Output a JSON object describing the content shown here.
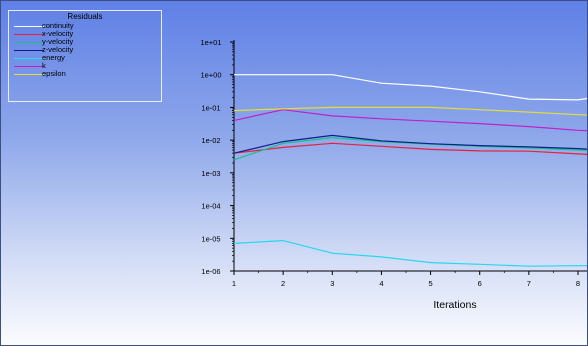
{
  "chart_data": {
    "type": "line",
    "title": "",
    "xlabel": "Iterations",
    "ylabel": "",
    "yscale": "log",
    "xlim": [
      1,
      8.3
    ],
    "ylim": [
      1e-06,
      10
    ],
    "x_ticks": [
      "1",
      "2",
      "3",
      "4",
      "5",
      "6",
      "7",
      "8"
    ],
    "y_ticks": [
      "1e+01",
      "1e+00",
      "1e-01",
      "1e-02",
      "1e-03",
      "1e-04",
      "1e-05",
      "1e-06"
    ],
    "grid": false,
    "legend": {
      "title": "Residuals",
      "placement": "top-left"
    },
    "x": [
      1,
      2,
      3,
      4,
      5,
      6,
      7,
      8,
      8.3
    ],
    "series": [
      {
        "name": "continuity",
        "color": "#ffffff",
        "values": [
          1.0,
          1.0,
          1.0,
          0.55,
          0.45,
          0.3,
          0.18,
          0.17,
          0.2
        ]
      },
      {
        "name": "x-velocity",
        "color": "#e8203a",
        "values": [
          0.004,
          0.006,
          0.008,
          0.0065,
          0.0052,
          0.0047,
          0.0046,
          0.0038,
          0.0036
        ]
      },
      {
        "name": "y-velocity",
        "color": "#18c08a",
        "values": [
          0.0025,
          0.008,
          0.012,
          0.009,
          0.0075,
          0.0065,
          0.0058,
          0.005,
          0.0048
        ]
      },
      {
        "name": "z-velocity",
        "color": "#0e1f8c",
        "values": [
          0.004,
          0.009,
          0.014,
          0.0095,
          0.0078,
          0.0068,
          0.0062,
          0.0055,
          0.0052
        ]
      },
      {
        "name": "energy",
        "color": "#25d8ee",
        "values": [
          7e-06,
          8.5e-06,
          3.5e-06,
          2.7e-06,
          1.8e-06,
          1.6e-06,
          1.4e-06,
          1.45e-06,
          1.45e-06
        ]
      },
      {
        "name": "k",
        "color": "#c020c8",
        "values": [
          0.04,
          0.085,
          0.055,
          0.045,
          0.038,
          0.032,
          0.026,
          0.02,
          0.019
        ]
      },
      {
        "name": "epsilon",
        "color": "#e4dc3c",
        "values": [
          0.08,
          0.09,
          0.1,
          0.1,
          0.1,
          0.085,
          0.072,
          0.06,
          0.058
        ]
      }
    ]
  }
}
